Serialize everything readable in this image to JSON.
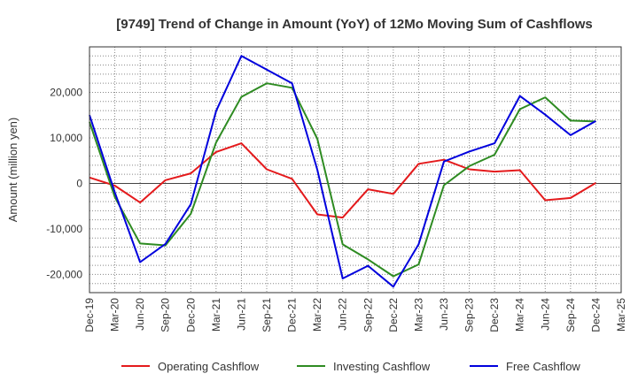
{
  "chart_data": {
    "type": "line",
    "title": "[9749]  Trend of Change in Amount (YoY) of 12Mo Moving Sum of Cashflows",
    "xlabel": "",
    "ylabel": "Amount (million yen)",
    "ylim": [
      -24000,
      30000
    ],
    "yticks": [
      20000,
      10000,
      0,
      -10000,
      -20000
    ],
    "ytick_labels": [
      "20,000",
      "10,000",
      "0",
      "-10,000",
      "-20,000"
    ],
    "grid": true,
    "legend_position": "bottom",
    "categories": [
      "Dec-19",
      "Mar-20",
      "Jun-20",
      "Sep-20",
      "Dec-20",
      "Mar-21",
      "Jun-21",
      "Sep-21",
      "Dec-21",
      "Mar-22",
      "Jun-22",
      "Sep-22",
      "Dec-22",
      "Mar-23",
      "Jun-23",
      "Sep-23",
      "Dec-23",
      "Mar-24",
      "Jun-24",
      "Sep-24",
      "Dec-24",
      "Mar-25"
    ],
    "series": [
      {
        "name": "Operating Cashflow",
        "color": "#e41a1c",
        "values": [
          1300,
          -500,
          -4200,
          700,
          2200,
          6900,
          8800,
          3100,
          1000,
          -6800,
          -7500,
          -1300,
          -2300,
          4300,
          5200,
          3100,
          2600,
          2900,
          -3700,
          -3200,
          100,
          null
        ]
      },
      {
        "name": "Investing Cashflow",
        "color": "#2e8b22",
        "values": [
          13500,
          -3000,
          -13200,
          -13600,
          -6700,
          9000,
          19000,
          22000,
          21000,
          9800,
          -13400,
          -16700,
          -20400,
          -17800,
          -400,
          3800,
          6300,
          16300,
          18900,
          13800,
          13600,
          null
        ]
      },
      {
        "name": "Free Cashflow",
        "color": "#0000dd",
        "values": [
          15000,
          -2000,
          -17300,
          -13300,
          -4600,
          15900,
          28000,
          25000,
          22000,
          3000,
          -20900,
          -18100,
          -22700,
          -13400,
          4800,
          7000,
          8800,
          19200,
          15100,
          10600,
          13700,
          null
        ]
      }
    ]
  }
}
